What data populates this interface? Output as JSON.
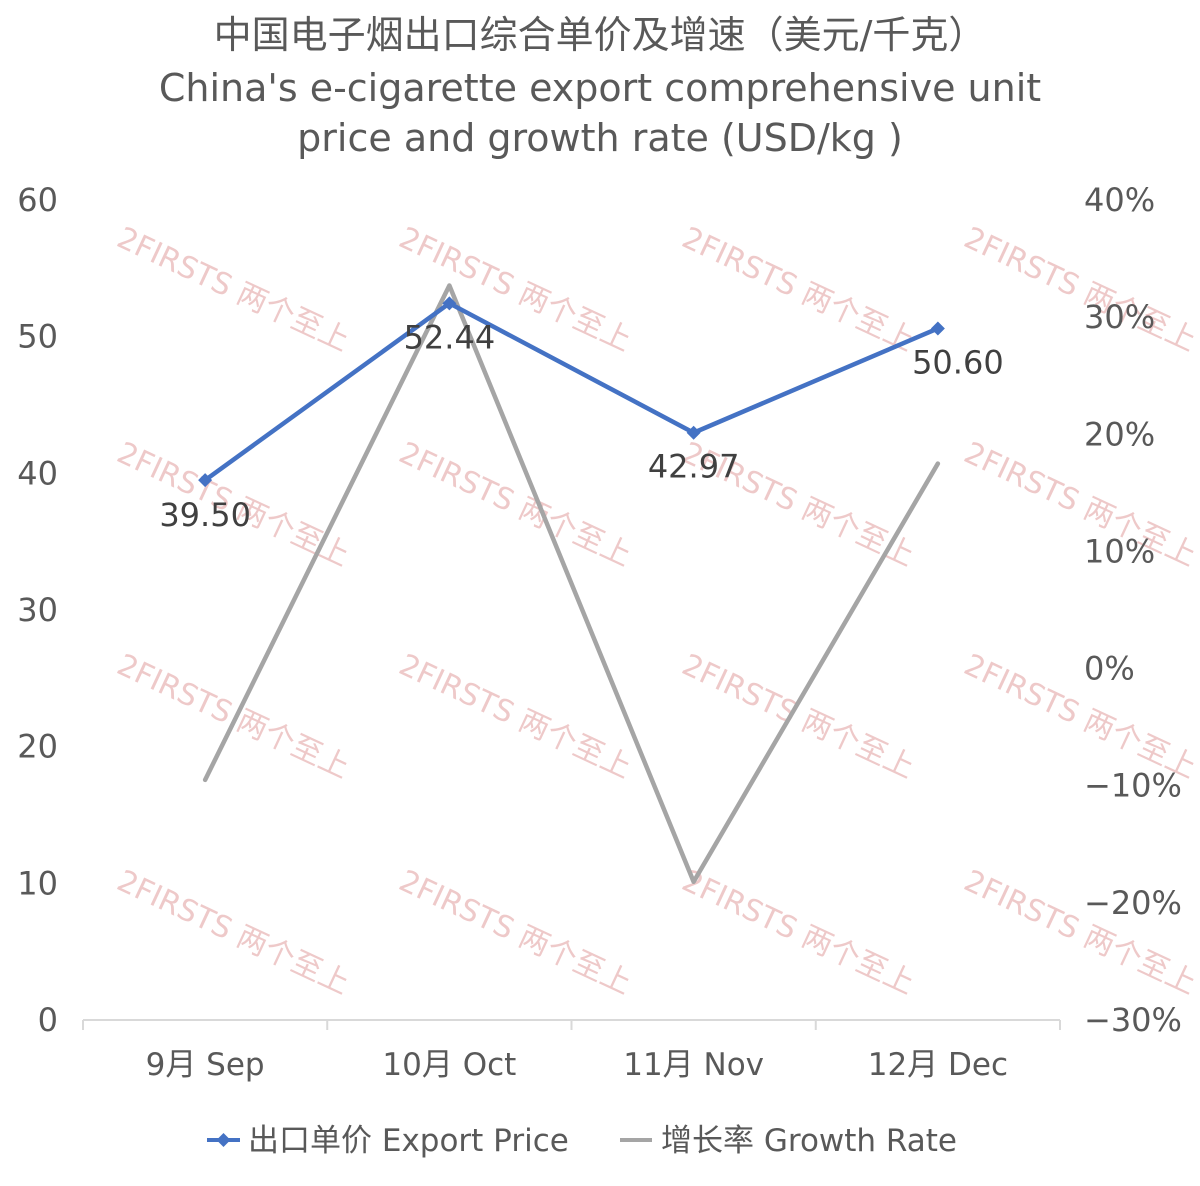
{
  "chart_data": {
    "type": "line",
    "title": "中国电子烟出口综合单价及增速（美元/千克）",
    "subtitle_lines": [
      "China's e-cigarette export comprehensive unit",
      "price and growth rate (USD/kg )"
    ],
    "categories": [
      "9月 Sep",
      "10月 Oct",
      "11月 Nov",
      "12月 Dec"
    ],
    "series": [
      {
        "name": "出口单价 Export Price",
        "axis": "left",
        "color": "#4472c4",
        "marker": "diamond",
        "values": [
          39.5,
          52.44,
          42.97,
          50.6
        ],
        "labels": [
          "39.50",
          "52.44",
          "42.97",
          "50.60"
        ]
      },
      {
        "name": "增长率 Growth Rate",
        "axis": "right",
        "color": "#a5a5a5",
        "marker": "none",
        "values": [
          -9.5,
          32.7,
          -18.2,
          17.5
        ]
      }
    ],
    "y_left": {
      "min": 0,
      "max": 60,
      "ticks": [
        "0",
        "10",
        "20",
        "30",
        "40",
        "50",
        "60"
      ]
    },
    "y_right": {
      "min": -30,
      "max": 40,
      "ticks": [
        "-30%",
        "-20%",
        "-10%",
        "0%",
        "10%",
        "20%",
        "30%",
        "40%"
      ]
    },
    "grid": false,
    "legend_position": "bottom"
  },
  "watermark": {
    "text": "2FIRSTS 两个至上"
  }
}
